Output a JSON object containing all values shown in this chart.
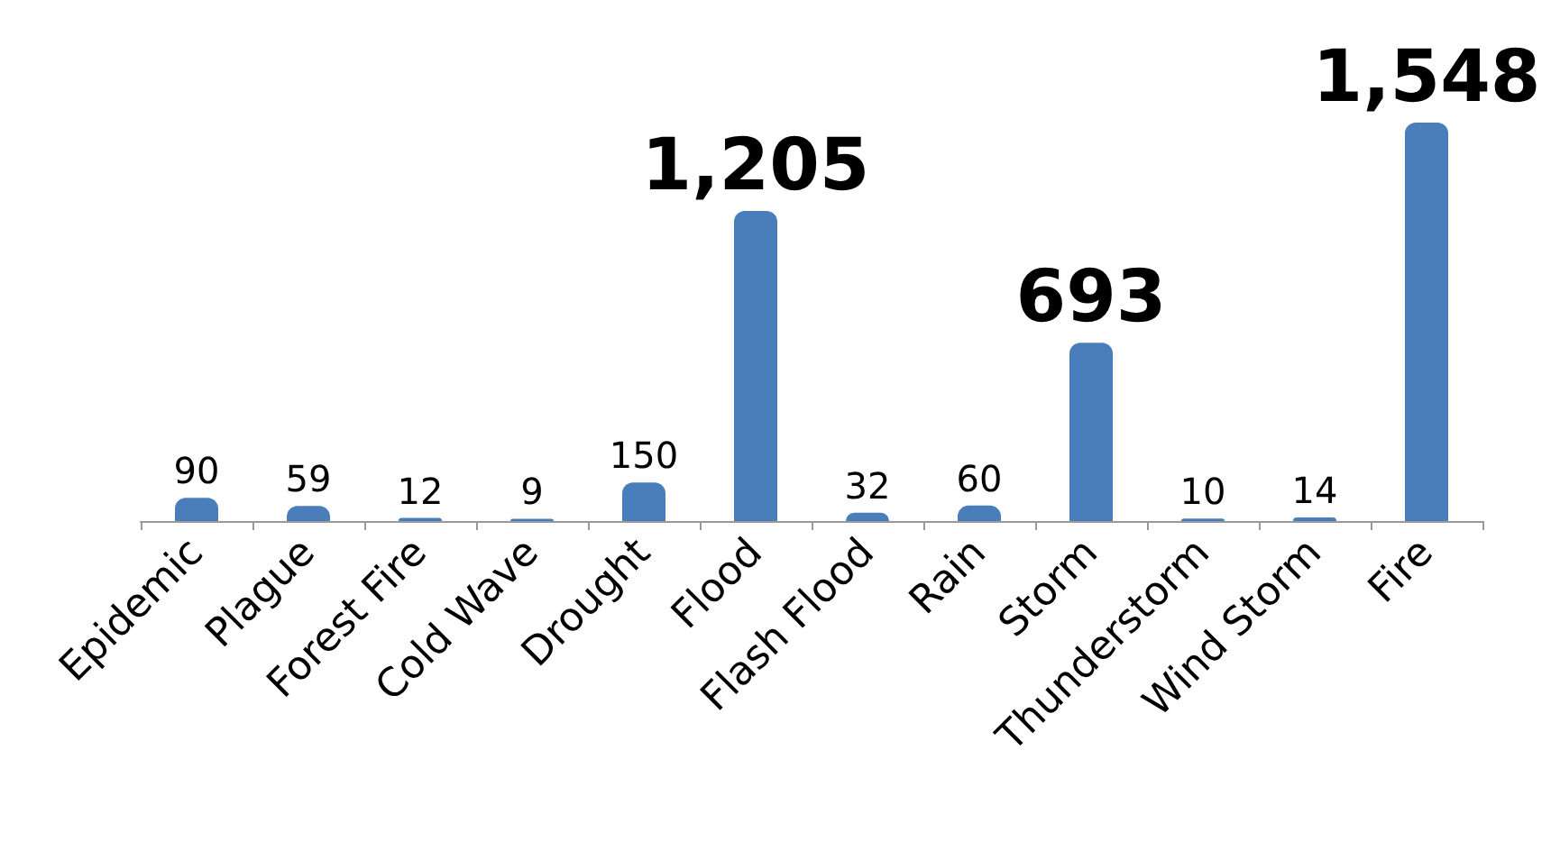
{
  "chart_data": {
    "type": "bar",
    "categories": [
      "Epidemic",
      "Plague",
      "Forest Fire",
      "Cold Wave",
      "Drought",
      "Flood",
      "Flash Flood",
      "Rain",
      "Storm",
      "Thunderstorm",
      "Wind Storm",
      "Fire"
    ],
    "values": [
      90,
      59,
      12,
      9,
      150,
      1205,
      32,
      60,
      693,
      10,
      14,
      1548
    ],
    "value_labels": [
      "90",
      "59",
      "12",
      "9",
      "150",
      "1,205",
      "32",
      "60",
      "693",
      "10",
      "14",
      "1,548"
    ],
    "color": "#4a7ebb"
  }
}
